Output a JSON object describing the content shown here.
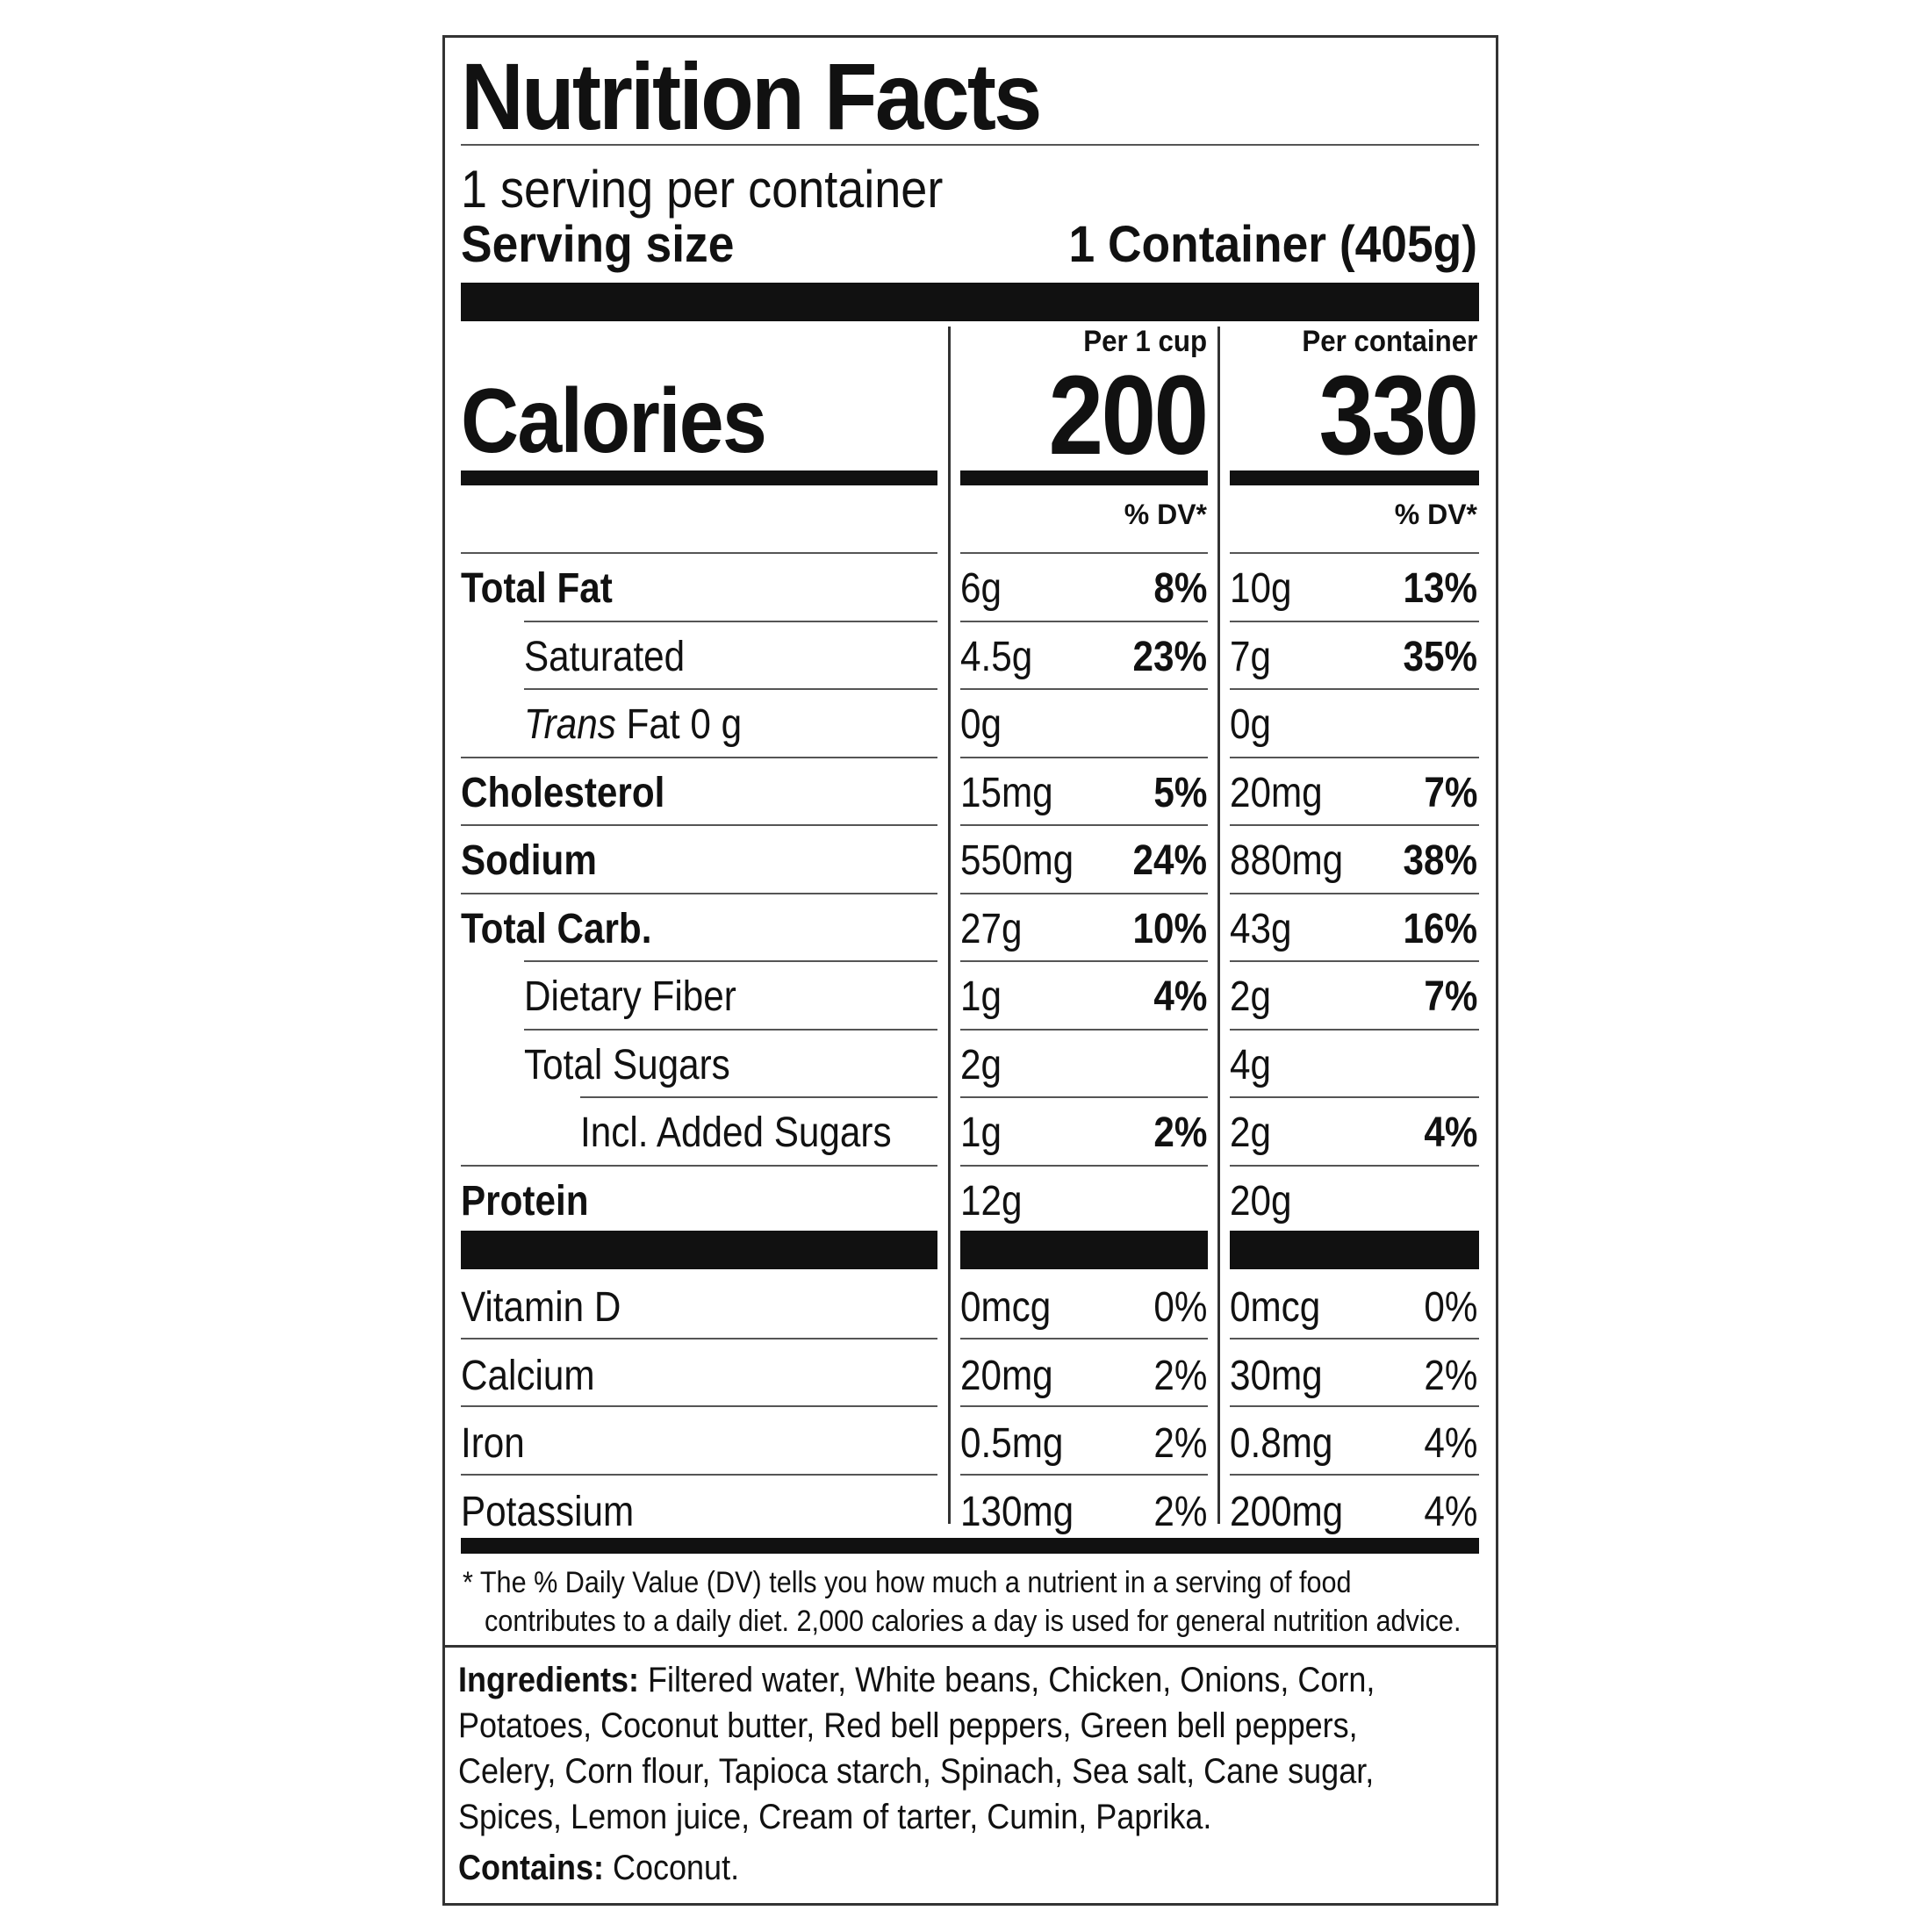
{
  "title": "Nutrition Facts",
  "servings_per_container": "1 serving per container",
  "serving_size_label": "Serving size",
  "serving_size_value": "1 Container (405g)",
  "calories_label": "Calories",
  "columns": [
    {
      "header": "Per 1 cup",
      "calories": "200",
      "dv_header": "% DV*"
    },
    {
      "header": "Per container",
      "calories": "330",
      "dv_header": "% DV*"
    }
  ],
  "nutrients": [
    {
      "name": "Total Fat",
      "c1_amount": "6g",
      "c1_dv": "8%",
      "c2_amount": "10g",
      "c2_dv": "13%"
    },
    {
      "name": "Saturated",
      "c1_amount": "4.5g",
      "c1_dv": "23%",
      "c2_amount": "7g",
      "c2_dv": "35%"
    },
    {
      "name_italic": "Trans",
      "name_rest": " Fat 0 g",
      "c1_amount": "0g",
      "c1_dv": "",
      "c2_amount": "0g",
      "c2_dv": ""
    },
    {
      "name": "Cholesterol",
      "c1_amount": "15mg",
      "c1_dv": "5%",
      "c2_amount": "20mg",
      "c2_dv": "7%"
    },
    {
      "name": "Sodium",
      "c1_amount": "550mg",
      "c1_dv": "24%",
      "c2_amount": "880mg",
      "c2_dv": "38%"
    },
    {
      "name": "Total Carb.",
      "c1_amount": "27g",
      "c1_dv": "10%",
      "c2_amount": "43g",
      "c2_dv": "16%"
    },
    {
      "name": "Dietary Fiber",
      "c1_amount": "1g",
      "c1_dv": "4%",
      "c2_amount": "2g",
      "c2_dv": "7%"
    },
    {
      "name": "Total Sugars",
      "c1_amount": "2g",
      "c1_dv": "",
      "c2_amount": "4g",
      "c2_dv": ""
    },
    {
      "name": "Incl. Added Sugars",
      "c1_amount": "1g",
      "c1_dv": "2%",
      "c2_amount": "2g",
      "c2_dv": "4%"
    },
    {
      "name": "Protein",
      "c1_amount": "12g",
      "c1_dv": "",
      "c2_amount": "20g",
      "c2_dv": ""
    }
  ],
  "vitamins": [
    {
      "name": "Vitamin D",
      "c1_amount": "0mcg",
      "c1_dv": "0%",
      "c2_amount": "0mcg",
      "c2_dv": "0%"
    },
    {
      "name": "Calcium",
      "c1_amount": "20mg",
      "c1_dv": "2%",
      "c2_amount": "30mg",
      "c2_dv": "2%"
    },
    {
      "name": "Iron",
      "c1_amount": "0.5mg",
      "c1_dv": "2%",
      "c2_amount": "0.8mg",
      "c2_dv": "4%"
    },
    {
      "name": "Potassium",
      "c1_amount": "130mg",
      "c1_dv": "2%",
      "c2_amount": "200mg",
      "c2_dv": "4%"
    }
  ],
  "footnote_line1": "* The % Daily Value (DV) tells you how much a nutrient in a serving of food",
  "footnote_line2": "contributes to a daily diet. 2,000 calories a day is used for general nutrition advice.",
  "ingredients_label": "Ingredients:",
  "ingredients_text": " Filtered water, White beans, Chicken, Onions, Corn, Potatoes, Coconut butter, Red bell peppers, Green bell peppers, Celery, Corn flour, Tapioca starch, Spinach, Sea salt, Cane sugar, Spices, Lemon juice, Cream of tarter, Cumin, Paprika.",
  "contains_label": "Contains:",
  "contains_text": " Coconut."
}
